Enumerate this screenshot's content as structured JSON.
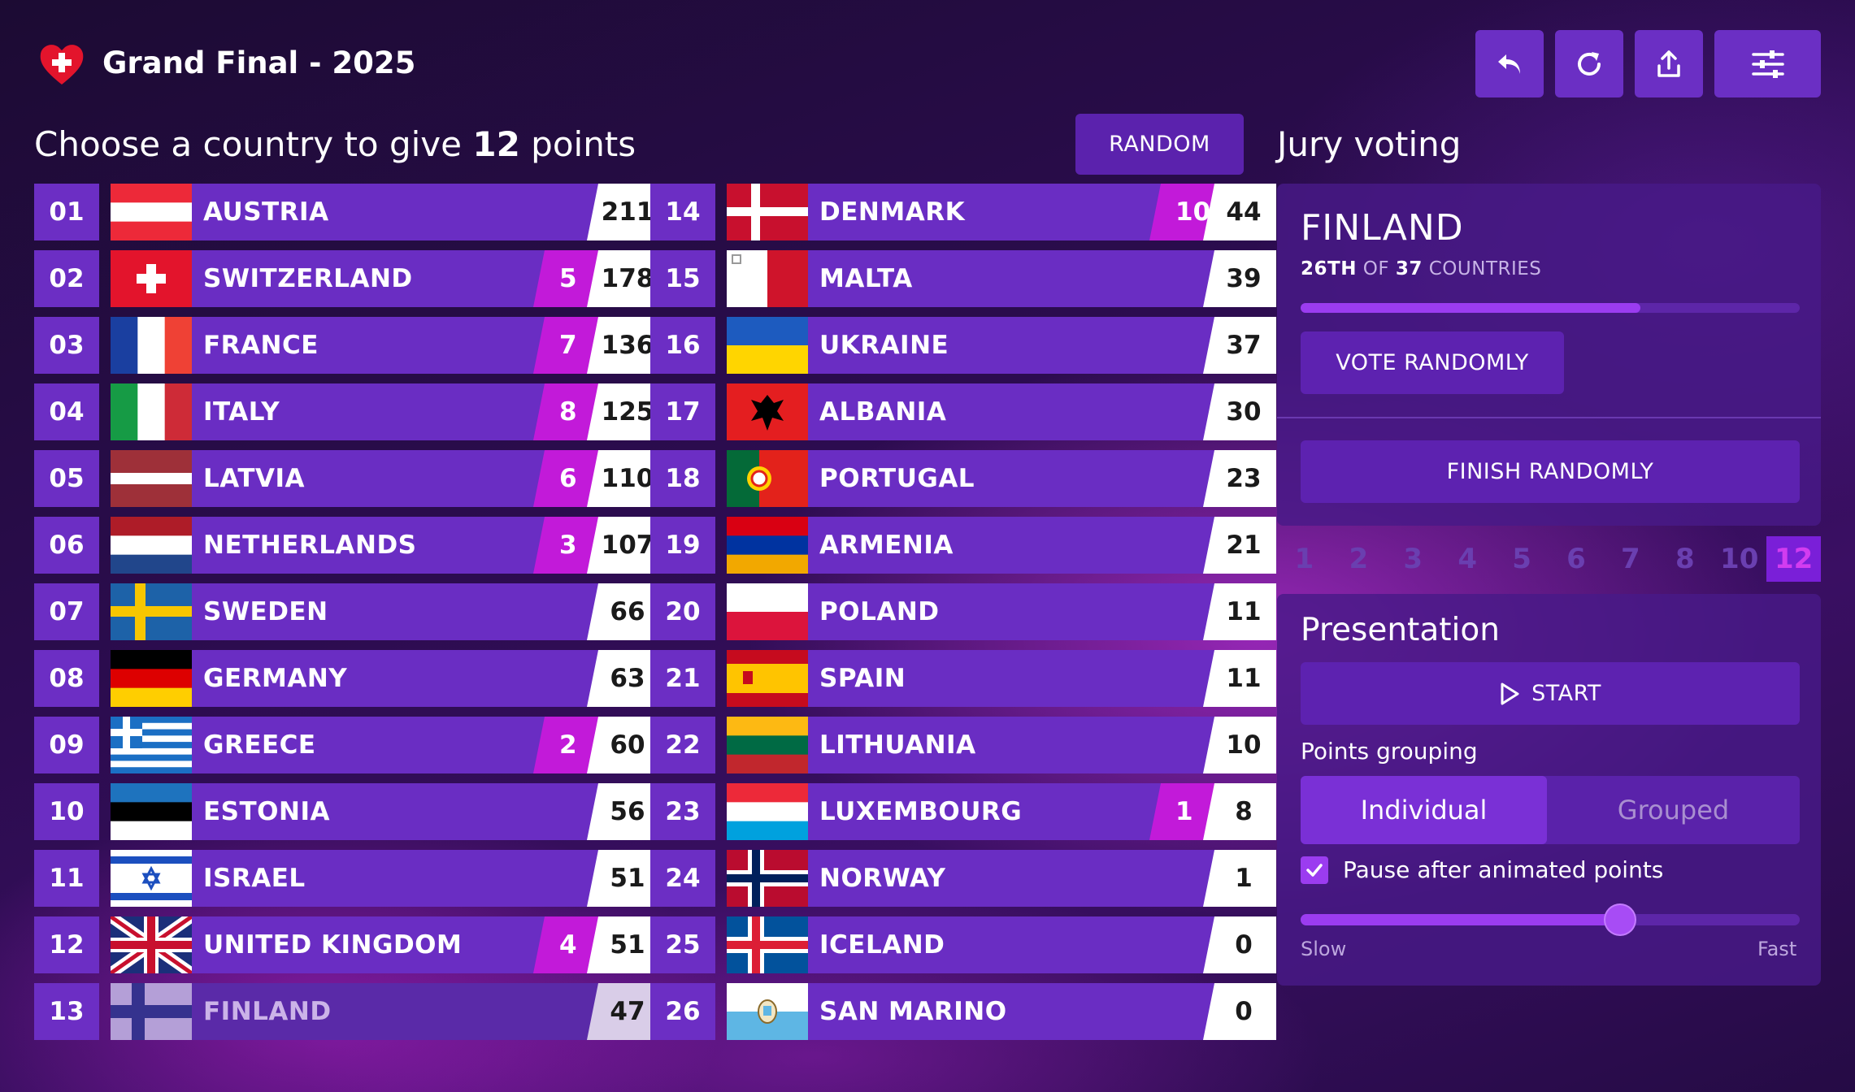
{
  "header": {
    "title": "Grand Final - 2025",
    "toolbar": [
      "undo-icon",
      "refresh-icon",
      "share-icon",
      "settings-sliders-icon"
    ]
  },
  "prompt": {
    "prefix": "Choose a country to give ",
    "points": "12",
    "suffix": " points"
  },
  "random_label": "RANDOM",
  "scoreboard": [
    {
      "rank": "01",
      "country": "AUSTRIA",
      "flag": "at",
      "given": "",
      "score": "211"
    },
    {
      "rank": "02",
      "country": "SWITZERLAND",
      "flag": "ch",
      "given": "5",
      "score": "178"
    },
    {
      "rank": "03",
      "country": "FRANCE",
      "flag": "fr",
      "given": "7",
      "score": "136"
    },
    {
      "rank": "04",
      "country": "ITALY",
      "flag": "it",
      "given": "8",
      "score": "125"
    },
    {
      "rank": "05",
      "country": "LATVIA",
      "flag": "lv",
      "given": "6",
      "score": "110"
    },
    {
      "rank": "06",
      "country": "NETHERLANDS",
      "flag": "nl",
      "given": "3",
      "score": "107"
    },
    {
      "rank": "07",
      "country": "SWEDEN",
      "flag": "se",
      "given": "",
      "score": "66"
    },
    {
      "rank": "08",
      "country": "GERMANY",
      "flag": "de",
      "given": "",
      "score": "63"
    },
    {
      "rank": "09",
      "country": "GREECE",
      "flag": "gr",
      "given": "2",
      "score": "60"
    },
    {
      "rank": "10",
      "country": "ESTONIA",
      "flag": "ee",
      "given": "",
      "score": "56"
    },
    {
      "rank": "11",
      "country": "ISRAEL",
      "flag": "il",
      "given": "",
      "score": "51"
    },
    {
      "rank": "12",
      "country": "UNITED KINGDOM",
      "flag": "gb",
      "given": "4",
      "score": "51"
    },
    {
      "rank": "13",
      "country": "FINLAND",
      "flag": "fi",
      "given": "",
      "score": "47",
      "disabled": true
    },
    {
      "rank": "14",
      "country": "DENMARK",
      "flag": "dk",
      "given": "10",
      "score": "44"
    },
    {
      "rank": "15",
      "country": "MALTA",
      "flag": "mt",
      "given": "",
      "score": "39"
    },
    {
      "rank": "16",
      "country": "UKRAINE",
      "flag": "ua",
      "given": "",
      "score": "37"
    },
    {
      "rank": "17",
      "country": "ALBANIA",
      "flag": "al",
      "given": "",
      "score": "30"
    },
    {
      "rank": "18",
      "country": "PORTUGAL",
      "flag": "pt",
      "given": "",
      "score": "23"
    },
    {
      "rank": "19",
      "country": "ARMENIA",
      "flag": "am",
      "given": "",
      "score": "21"
    },
    {
      "rank": "20",
      "country": "POLAND",
      "flag": "pl",
      "given": "",
      "score": "11"
    },
    {
      "rank": "21",
      "country": "SPAIN",
      "flag": "es",
      "given": "",
      "score": "11"
    },
    {
      "rank": "22",
      "country": "LITHUANIA",
      "flag": "lt",
      "given": "",
      "score": "10"
    },
    {
      "rank": "23",
      "country": "LUXEMBOURG",
      "flag": "lu",
      "given": "1",
      "score": "8"
    },
    {
      "rank": "24",
      "country": "NORWAY",
      "flag": "no",
      "given": "",
      "score": "1"
    },
    {
      "rank": "25",
      "country": "ICELAND",
      "flag": "is",
      "given": "",
      "score": "0"
    },
    {
      "rank": "26",
      "country": "SAN MARINO",
      "flag": "sm",
      "given": "",
      "score": "0"
    }
  ],
  "jury": {
    "title": "Jury voting",
    "country": "FINLAND",
    "position": "26TH",
    "of_label": " OF ",
    "total": "37",
    "countries_label": " COUNTRIES",
    "progress": 0.68,
    "vote_randomly": "VOTE RANDOMLY",
    "finish_randomly": "FINISH RANDOMLY",
    "points": [
      "1",
      "2",
      "3",
      "4",
      "5",
      "6",
      "7",
      "8",
      "10",
      "12"
    ],
    "selected_point": "12"
  },
  "presentation": {
    "title": "Presentation",
    "start": "START",
    "grouping_label": "Points grouping",
    "grouping_options": [
      "Individual",
      "Grouped"
    ],
    "grouping_selected": "Individual",
    "pause_label": "Pause after animated points",
    "pause_checked": true,
    "speed_value": 0.64,
    "slow": "Slow",
    "fast": "Fast"
  },
  "colors": {
    "accent": "#6a2dc3",
    "given": "#c21ad9",
    "progress": "#9b3cf0"
  }
}
